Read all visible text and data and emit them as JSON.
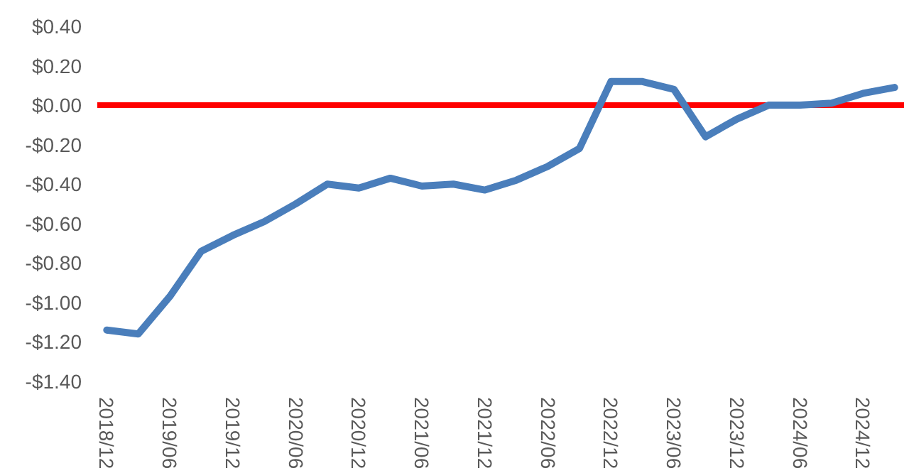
{
  "chart_data": {
    "type": "line",
    "categories": [
      "2018/12",
      null,
      "2019/06",
      null,
      "2019/12",
      null,
      "2020/06",
      null,
      "2020/12",
      null,
      "2021/06",
      null,
      "2021/12",
      null,
      "2022/06",
      null,
      "2022/12",
      null,
      "2023/06",
      null,
      "2023/12",
      null,
      "2024/06",
      null,
      "2024/12",
      null
    ],
    "series": [
      {
        "color": "#4a7ebb",
        "values": [
          -1.14,
          -1.16,
          -0.97,
          -0.74,
          -0.66,
          -0.59,
          -0.5,
          -0.4,
          -0.42,
          -0.37,
          -0.41,
          -0.4,
          -0.43,
          -0.38,
          -0.31,
          -0.22,
          0.12,
          0.12,
          0.08,
          -0.16,
          -0.07,
          0.0,
          0.0,
          0.01,
          0.06,
          0.09
        ]
      }
    ],
    "ylim": [
      -1.4,
      0.4
    ],
    "yticks": [
      {
        "value": -1.4,
        "label": "-$1.40"
      },
      {
        "value": -1.2,
        "label": "-$1.20"
      },
      {
        "value": -1.0,
        "label": "-$1.00"
      },
      {
        "value": -0.8,
        "label": "-$0.80"
      },
      {
        "value": -0.6,
        "label": "-$0.60"
      },
      {
        "value": -0.4,
        "label": "-$0.40"
      },
      {
        "value": -0.2,
        "label": "-$0.20"
      },
      {
        "value": 0,
        "label": "$0.00"
      },
      {
        "value": 0.2,
        "label": "$0.20"
      },
      {
        "value": 0.4,
        "label": "$0.40"
      }
    ],
    "ref_lines": [
      {
        "axis": "y",
        "value": 0,
        "color": "#ff0000"
      }
    ],
    "grid": false,
    "marker": "none",
    "line_style": "solid"
  }
}
